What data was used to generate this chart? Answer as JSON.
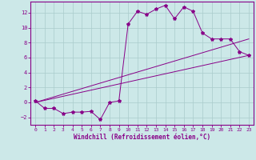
{
  "background_color": "#cce8e8",
  "grid_color": "#aacccc",
  "line_color": "#880088",
  "marker": "*",
  "xlim": [
    -0.5,
    23.5
  ],
  "ylim": [
    -3.0,
    13.5
  ],
  "xlabel": "Windchill (Refroidissement éolien,°C)",
  "yticks": [
    -2,
    0,
    2,
    4,
    6,
    8,
    10,
    12
  ],
  "xticks": [
    0,
    1,
    2,
    3,
    4,
    5,
    6,
    7,
    8,
    9,
    10,
    11,
    12,
    13,
    14,
    15,
    16,
    17,
    18,
    19,
    20,
    21,
    22,
    23
  ],
  "line1_x": [
    0,
    1,
    2,
    3,
    4,
    5,
    6,
    7,
    8,
    9,
    10,
    11,
    12,
    13,
    14,
    15,
    16,
    17,
    18,
    19,
    20,
    21,
    22,
    23
  ],
  "line1_y": [
    0.2,
    -0.8,
    -0.8,
    -1.5,
    -1.3,
    -1.3,
    -1.2,
    -2.3,
    0.0,
    0.2,
    10.5,
    12.2,
    11.8,
    12.5,
    13.0,
    11.2,
    12.8,
    12.2,
    9.3,
    8.5,
    8.5,
    8.5,
    6.8,
    6.3
  ],
  "line2_x": [
    0,
    23
  ],
  "line2_y": [
    0.0,
    8.5
  ],
  "line3_x": [
    0,
    23
  ],
  "line3_y": [
    0.0,
    6.3
  ]
}
